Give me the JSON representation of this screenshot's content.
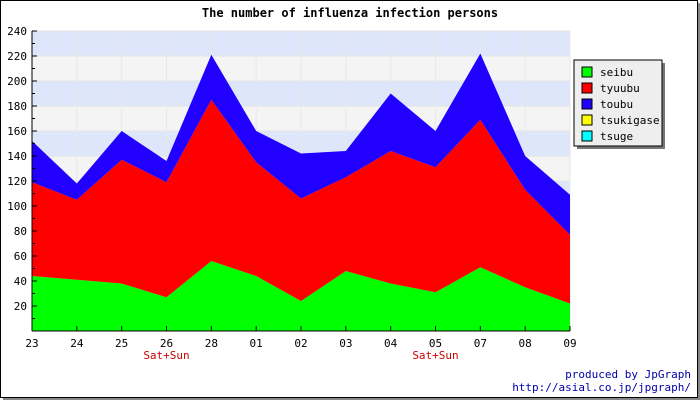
{
  "chart_data": {
    "type": "area",
    "stacked": true,
    "title": "The number of influenza infection persons",
    "xlabel": "",
    "ylabel": "",
    "categories": [
      "23",
      "24",
      "25",
      "26",
      "28",
      "01",
      "02",
      "03",
      "04",
      "05",
      "07",
      "08",
      "09"
    ],
    "ylim": [
      0,
      240
    ],
    "yticks": [
      20,
      40,
      60,
      80,
      100,
      120,
      140,
      160,
      180,
      200,
      220,
      240
    ],
    "grid": true,
    "legend_position": "right",
    "annotations": [
      {
        "category": "26",
        "text": "Sat+Sun"
      },
      {
        "category": "05",
        "text": "Sat+Sun"
      }
    ],
    "series": [
      {
        "name": "seibu",
        "color": "#00ff00",
        "values": [
          44,
          41,
          38,
          27,
          56,
          44,
          24,
          48,
          38,
          31,
          51,
          35,
          22
        ]
      },
      {
        "name": "tyuubu",
        "color": "#ff0000",
        "values": [
          75,
          64,
          99,
          92,
          129,
          91,
          82,
          75,
          106,
          100,
          118,
          78,
          55
        ]
      },
      {
        "name": "toubu",
        "color": "#2200ff",
        "values": [
          33,
          13,
          23,
          17,
          36,
          25,
          36,
          21,
          46,
          29,
          53,
          27,
          32
        ]
      },
      {
        "name": "tsukigase",
        "color": "#ffff00",
        "values": [
          0,
          0,
          0,
          0,
          0,
          0,
          0,
          0,
          0,
          0,
          0,
          0,
          0
        ]
      },
      {
        "name": "tsuge",
        "color": "#00ffff",
        "values": [
          0,
          0,
          0,
          0,
          0,
          0,
          0,
          0,
          0,
          0,
          0,
          0,
          0
        ]
      }
    ]
  },
  "credit": {
    "line1": "produced by JpGraph",
    "line2": "http://asial.co.jp/jpgraph/"
  }
}
